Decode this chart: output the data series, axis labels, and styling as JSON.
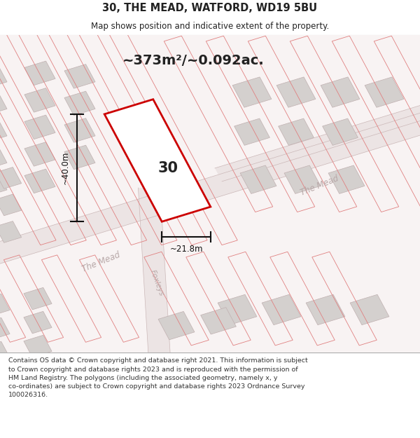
{
  "title_line1": "30, THE MEAD, WATFORD, WD19 5BU",
  "title_line2": "Map shows position and indicative extent of the property.",
  "area_label": "~373m²/~0.092ac.",
  "width_label": "~21.8m",
  "height_label": "~40.0m",
  "number_label": "30",
  "footer_text": "Contains OS data © Crown copyright and database right 2021. This information is subject\nto Crown copyright and database rights 2023 and is reproduced with the permission of\nHM Land Registry. The polygons (including the associated geometry, namely x, y\nco-ordinates) are subject to Crown copyright and database rights 2023 Ordnance Survey\n100026316.",
  "plot_outline_color": "#cc0000",
  "building_fill_color": "#d4d0ce",
  "building_outline_color": "#c0b0b0",
  "road_fill_color": "#ede8e8",
  "cadastral_color": "#e08080",
  "dimension_color": "#111111",
  "text_color": "#222222",
  "road_text_color": "#b8a8a8",
  "map_bg": "#f5eeee",
  "title_bg": "#ffffff",
  "footer_bg": "#ffffff"
}
